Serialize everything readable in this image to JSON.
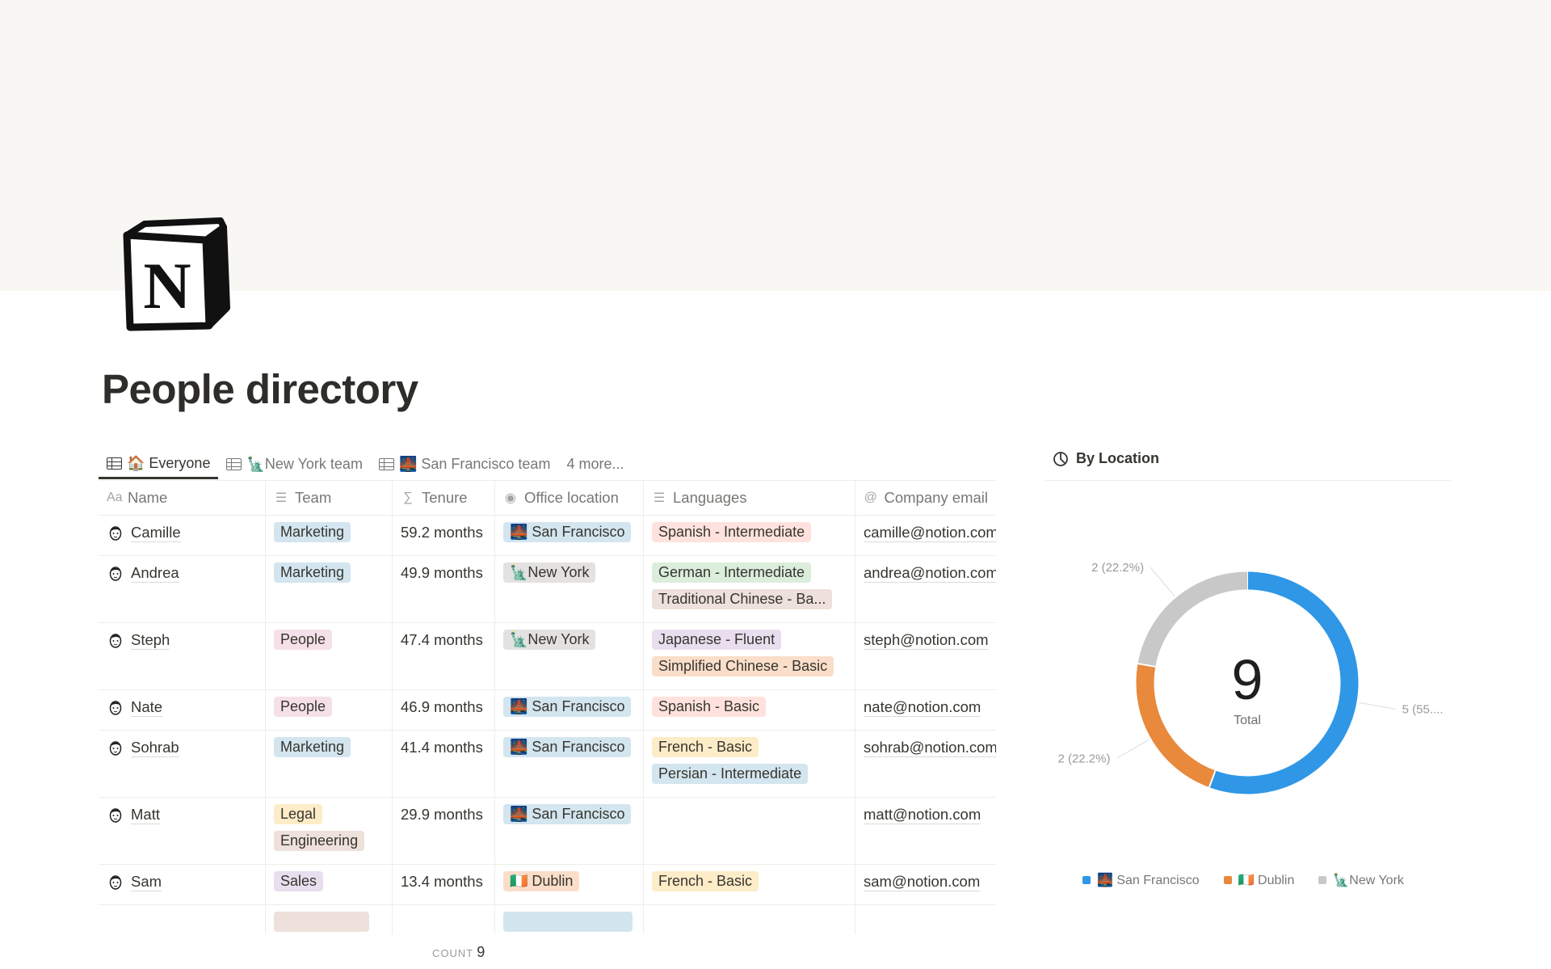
{
  "page": {
    "title": "People directory"
  },
  "tabs": [
    {
      "label": "🏠 Everyone",
      "active": true
    },
    {
      "label": "🗽New York team",
      "active": false
    },
    {
      "label": "🌉 San Francisco team",
      "active": false
    },
    {
      "label": "4 more...",
      "active": false
    }
  ],
  "table": {
    "columns": [
      {
        "icon": "Aa",
        "label": "Name"
      },
      {
        "icon": "☰",
        "label": "Team"
      },
      {
        "icon": "∑",
        "label": "Tenure"
      },
      {
        "icon": "◉",
        "label": "Office location"
      },
      {
        "icon": "☰",
        "label": "Languages"
      },
      {
        "icon": "@",
        "label": "Company email"
      }
    ],
    "rows": [
      {
        "name": "Camille",
        "team": [
          "Marketing"
        ],
        "tenure": "59.2 months",
        "location": "🌉 San Francisco",
        "languages": [
          "Spanish - Intermediate"
        ],
        "email": "camille@notion.com"
      },
      {
        "name": "Andrea",
        "team": [
          "Marketing"
        ],
        "tenure": "49.9 months",
        "location": "🗽New York",
        "languages": [
          "German - Intermediate",
          "Traditional Chinese - Ba..."
        ],
        "email": "andrea@notion.com"
      },
      {
        "name": "Steph",
        "team": [
          "People"
        ],
        "tenure": "47.4 months",
        "location": "🗽New York",
        "languages": [
          "Japanese - Fluent",
          "Simplified Chinese - Basic"
        ],
        "email": "steph@notion.com"
      },
      {
        "name": "Nate",
        "team": [
          "People"
        ],
        "tenure": "46.9 months",
        "location": "🌉 San Francisco",
        "languages": [
          "Spanish - Basic"
        ],
        "email": "nate@notion.com"
      },
      {
        "name": "Sohrab",
        "team": [
          "Marketing"
        ],
        "tenure": "41.4 months",
        "location": "🌉 San Francisco",
        "languages": [
          "French - Basic",
          "Persian - Intermediate"
        ],
        "email": "sohrab@notion.com"
      },
      {
        "name": "Matt",
        "team": [
          "Legal",
          "Engineering"
        ],
        "tenure": "29.9 months",
        "location": "🌉 San Francisco",
        "languages": [],
        "email": "matt@notion.com"
      },
      {
        "name": "Sam",
        "team": [
          "Sales"
        ],
        "tenure": "13.4 months",
        "location": "🇮🇪 Dublin",
        "languages": [
          "French - Basic"
        ],
        "email": "sam@notion.com"
      }
    ],
    "tag_colors": {
      "Marketing": "#d3e5ef",
      "People": "#f5e0e9",
      "Legal": "#fdecc8",
      "Engineering": "#eee0da",
      "Sales": "#e8deee",
      "🌉 San Francisco": "#d3e5ef",
      "🗽New York": "#e3e2e0",
      "🇮🇪 Dublin": "#fadec9",
      "Spanish - Intermediate": "#ffe2dd",
      "Spanish - Basic": "#ffe2dd",
      "German - Intermediate": "#dbeddb",
      "Traditional Chinese - Ba...": "#eee0da",
      "Japanese - Fluent": "#e8deee",
      "Simplified Chinese - Basic": "#fadec9",
      "French - Basic": "#fdecc8",
      "Persian - Intermediate": "#d3e5ef"
    },
    "footer": {
      "count_label": "COUNT",
      "count_value": "9"
    }
  },
  "chart_panel": {
    "title": "By Location",
    "icon": "pie-chart-icon"
  },
  "chart_data": {
    "type": "pie",
    "variant": "donut",
    "total_value": "9",
    "total_label": "Total",
    "slices": [
      {
        "label": "🌉 San Francisco",
        "value": 5,
        "data_label": "5 (55....",
        "color": "#2f97e6"
      },
      {
        "label": "🇮🇪 Dublin",
        "value": 2,
        "data_label": "2 (22.2%)",
        "color": "#e8893c"
      },
      {
        "label": "🗽New York",
        "value": 2,
        "data_label": "2 (22.2%)",
        "color": "#c8c8c8"
      }
    ],
    "legend_position": "bottom"
  }
}
